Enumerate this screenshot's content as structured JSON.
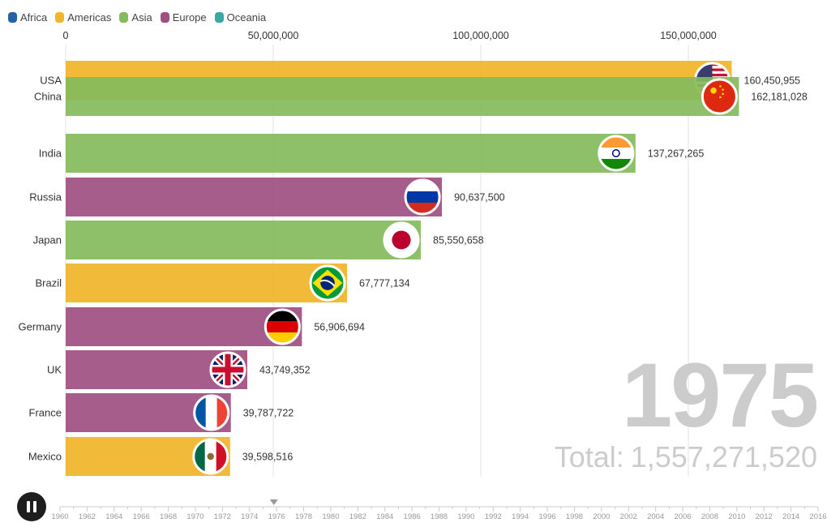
{
  "legend": [
    {
      "name": "Africa",
      "color": "#2563a4"
    },
    {
      "name": "Americas",
      "color": "#f0b528"
    },
    {
      "name": "Asia",
      "color": "#84bb5c"
    },
    {
      "name": "Europe",
      "color": "#9e4f82"
    },
    {
      "name": "Oceania",
      "color": "#39a8a5"
    }
  ],
  "chart_data": {
    "type": "bar",
    "orientation": "horizontal",
    "year": "1975",
    "total": "1,557,271,520",
    "total_label": "Total:",
    "xlim": [
      0,
      180000000
    ],
    "xticks": [
      {
        "value": 0,
        "label": "0"
      },
      {
        "value": 50000000,
        "label": "50,000,000"
      },
      {
        "value": 100000000,
        "label": "100,000,000"
      },
      {
        "value": 150000000,
        "label": "150,000,000"
      }
    ],
    "legend_position": "top-left",
    "grid": true,
    "categories": [
      "USA",
      "China",
      "India",
      "Russia",
      "Japan",
      "Brazil",
      "Germany",
      "UK",
      "France",
      "Mexico"
    ],
    "bars": [
      {
        "name": "USA",
        "region": "Americas",
        "value": 160450955,
        "label": "160,450,955",
        "flag": "usa-flag"
      },
      {
        "name": "China",
        "region": "Asia",
        "value": 162181028,
        "label": "162,181,028",
        "flag": "china-flag"
      },
      {
        "name": "India",
        "region": "Asia",
        "value": 137267265,
        "label": "137,267,265",
        "flag": "india-flag"
      },
      {
        "name": "Russia",
        "region": "Europe",
        "value": 90637500,
        "label": "90,637,500",
        "flag": "russia-flag"
      },
      {
        "name": "Japan",
        "region": "Asia",
        "value": 85550658,
        "label": "85,550,658",
        "flag": "japan-flag"
      },
      {
        "name": "Brazil",
        "region": "Americas",
        "value": 67777134,
        "label": "67,777,134",
        "flag": "brazil-flag"
      },
      {
        "name": "Germany",
        "region": "Europe",
        "value": 56906694,
        "label": "56,906,694",
        "flag": "germany-flag"
      },
      {
        "name": "UK",
        "region": "Europe",
        "value": 43749352,
        "label": "43,749,352",
        "flag": "uk-flag"
      },
      {
        "name": "France",
        "region": "Europe",
        "value": 39787722,
        "label": "39,787,722",
        "flag": "france-flag"
      },
      {
        "name": "Mexico",
        "region": "Americas",
        "value": 39598516,
        "label": "39,598,516",
        "flag": "mexico-flag"
      }
    ]
  },
  "timeline": {
    "years": [
      "1960",
      "1962",
      "1964",
      "1966",
      "1968",
      "1970",
      "1972",
      "1974",
      "1976",
      "1978",
      "1980",
      "1982",
      "1984",
      "1986",
      "1988",
      "1990",
      "1992",
      "1994",
      "1996",
      "1998",
      "2000",
      "2002",
      "2004",
      "2006",
      "2008",
      "2010",
      "2012",
      "2014",
      "2016"
    ],
    "first_year": 1960,
    "last_year": 2016,
    "current_year": 1975.8
  },
  "controls": {
    "play_button_icon": "pause-icon"
  }
}
